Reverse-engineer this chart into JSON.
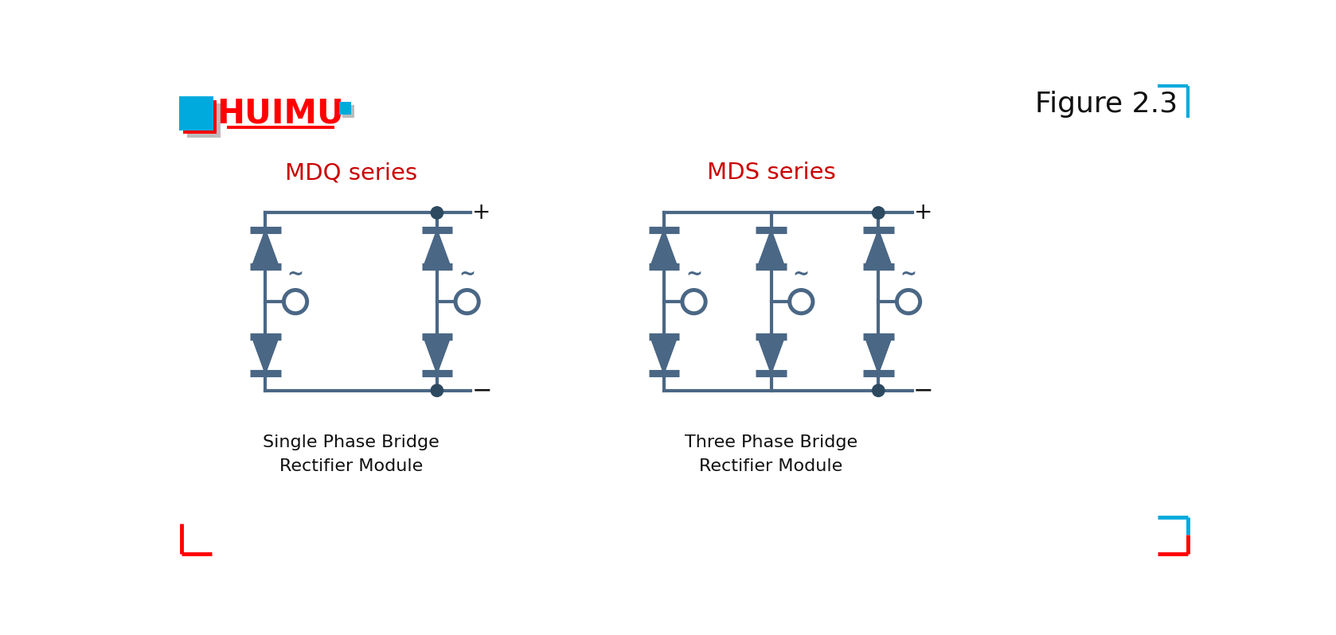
{
  "bg_color": "#ffffff",
  "circuit_color": "#4a6785",
  "circuit_lw": 3.0,
  "title_text": "Figure 2.3",
  "title_color": "#111111",
  "mdq_label": "MDQ series",
  "mds_label": "MDS series",
  "series_color": "#cc0000",
  "bottom_label_left": "Single Phase Bridge\nRectifier Module",
  "bottom_label_right": "Three Phase Bridge\nRectifier Module",
  "bottom_label_color": "#111111",
  "dot_color": "#2d4a60",
  "corner_color_red": "#ff0000",
  "corner_color_blue": "#00aadd",
  "logo_red": "#ff0000",
  "logo_blue": "#00aadd",
  "logo_gray": "#bbbbbb",
  "diode_hw": 0.22,
  "diode_hh": 0.3
}
